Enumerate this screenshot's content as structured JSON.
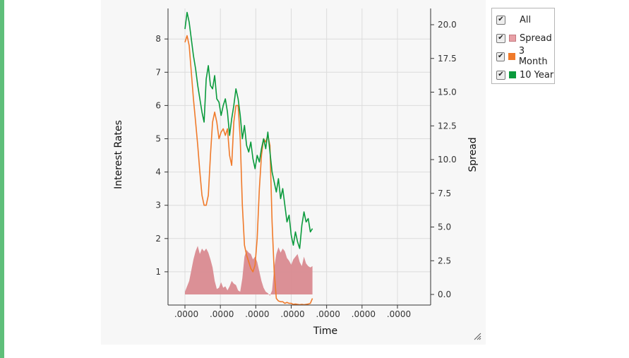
{
  "chart_data": {
    "type": "line",
    "xlabel": "Time",
    "ylabel": "Interest Rates",
    "y2label": "Spread",
    "x_tick_labels": [
      ".0000",
      ".0000",
      ".0000",
      ".0000",
      ".0000",
      ".0000",
      ".0000"
    ],
    "ylim": [
      0,
      8.8
    ],
    "y_ticks": [
      1,
      2,
      3,
      4,
      5,
      6,
      7,
      8
    ],
    "y2lim": [
      -1.0,
      21.1
    ],
    "y2_ticks": [
      "0.0",
      "2.5",
      "5.0",
      "7.5",
      "10.0",
      "12.5",
      "15.0",
      "17.5",
      "20.0"
    ],
    "grid": true,
    "legend_position": "right",
    "series": [
      {
        "name": "10 Year",
        "axis": "left",
        "color": "#0a9a3c",
        "points": [
          [
            0.0,
            8.3
          ],
          [
            0.01,
            8.8
          ],
          [
            0.02,
            8.5
          ],
          [
            0.03,
            8.0
          ],
          [
            0.04,
            7.5
          ],
          [
            0.05,
            7.1
          ],
          [
            0.06,
            6.6
          ],
          [
            0.07,
            6.2
          ],
          [
            0.08,
            5.8
          ],
          [
            0.09,
            5.5
          ],
          [
            0.1,
            6.8
          ],
          [
            0.11,
            7.2
          ],
          [
            0.12,
            6.6
          ],
          [
            0.13,
            6.5
          ],
          [
            0.14,
            6.9
          ],
          [
            0.15,
            6.2
          ],
          [
            0.16,
            6.1
          ],
          [
            0.17,
            5.7
          ],
          [
            0.18,
            6.0
          ],
          [
            0.19,
            6.2
          ],
          [
            0.2,
            5.8
          ],
          [
            0.21,
            5.1
          ],
          [
            0.22,
            5.6
          ],
          [
            0.23,
            6.0
          ],
          [
            0.24,
            6.5
          ],
          [
            0.25,
            6.2
          ],
          [
            0.26,
            5.7
          ],
          [
            0.27,
            5.0
          ],
          [
            0.28,
            5.4
          ],
          [
            0.29,
            4.8
          ],
          [
            0.3,
            4.6
          ],
          [
            0.31,
            4.9
          ],
          [
            0.32,
            4.4
          ],
          [
            0.33,
            4.1
          ],
          [
            0.34,
            4.5
          ],
          [
            0.35,
            4.3
          ],
          [
            0.36,
            4.7
          ],
          [
            0.37,
            5.0
          ],
          [
            0.38,
            4.7
          ],
          [
            0.39,
            5.2
          ],
          [
            0.4,
            4.6
          ],
          [
            0.41,
            4.0
          ],
          [
            0.42,
            3.7
          ],
          [
            0.43,
            3.4
          ],
          [
            0.44,
            3.8
          ],
          [
            0.45,
            3.2
          ],
          [
            0.46,
            3.5
          ],
          [
            0.47,
            3.0
          ],
          [
            0.48,
            2.5
          ],
          [
            0.49,
            2.7
          ],
          [
            0.5,
            2.1
          ],
          [
            0.51,
            1.8
          ],
          [
            0.52,
            2.2
          ],
          [
            0.53,
            1.9
          ],
          [
            0.54,
            1.7
          ],
          [
            0.55,
            2.4
          ],
          [
            0.56,
            2.8
          ],
          [
            0.57,
            2.5
          ],
          [
            0.58,
            2.6
          ],
          [
            0.59,
            2.2
          ],
          [
            0.6,
            2.3
          ]
        ]
      },
      {
        "name": "3 Month",
        "axis": "left",
        "color": "#f07a2a",
        "points": [
          [
            0.0,
            7.9
          ],
          [
            0.01,
            8.1
          ],
          [
            0.02,
            7.8
          ],
          [
            0.03,
            7.0
          ],
          [
            0.04,
            6.2
          ],
          [
            0.05,
            5.5
          ],
          [
            0.06,
            4.8
          ],
          [
            0.07,
            4.0
          ],
          [
            0.08,
            3.3
          ],
          [
            0.09,
            3.0
          ],
          [
            0.1,
            3.0
          ],
          [
            0.11,
            3.3
          ],
          [
            0.12,
            4.5
          ],
          [
            0.13,
            5.5
          ],
          [
            0.14,
            5.8
          ],
          [
            0.15,
            5.5
          ],
          [
            0.16,
            5.0
          ],
          [
            0.17,
            5.2
          ],
          [
            0.18,
            5.3
          ],
          [
            0.19,
            5.1
          ],
          [
            0.2,
            5.3
          ],
          [
            0.21,
            4.5
          ],
          [
            0.22,
            4.2
          ],
          [
            0.23,
            5.5
          ],
          [
            0.24,
            6.0
          ],
          [
            0.25,
            6.0
          ],
          [
            0.26,
            5.0
          ],
          [
            0.27,
            3.0
          ],
          [
            0.28,
            1.8
          ],
          [
            0.29,
            1.5
          ],
          [
            0.3,
            1.3
          ],
          [
            0.31,
            1.1
          ],
          [
            0.32,
            1.0
          ],
          [
            0.33,
            1.2
          ],
          [
            0.34,
            2.0
          ],
          [
            0.35,
            3.5
          ],
          [
            0.36,
            4.5
          ],
          [
            0.37,
            5.0
          ],
          [
            0.38,
            4.9
          ],
          [
            0.39,
            5.1
          ],
          [
            0.4,
            4.8
          ],
          [
            0.41,
            2.5
          ],
          [
            0.42,
            1.0
          ],
          [
            0.43,
            0.2
          ],
          [
            0.44,
            0.12
          ],
          [
            0.45,
            0.1
          ],
          [
            0.46,
            0.1
          ],
          [
            0.47,
            0.05
          ],
          [
            0.48,
            0.08
          ],
          [
            0.49,
            0.05
          ],
          [
            0.5,
            0.05
          ],
          [
            0.51,
            0.02
          ],
          [
            0.52,
            0.03
          ],
          [
            0.53,
            0.02
          ],
          [
            0.54,
            0.01
          ],
          [
            0.55,
            0.02
          ],
          [
            0.56,
            0.01
          ],
          [
            0.57,
            0.02
          ],
          [
            0.58,
            0.03
          ],
          [
            0.59,
            0.05
          ],
          [
            0.6,
            0.2
          ]
        ]
      },
      {
        "name": "Spread",
        "axis": "right",
        "color": "#d98a90",
        "points": [
          [
            0.0,
            0.2
          ],
          [
            0.02,
            1.0
          ],
          [
            0.03,
            1.8
          ],
          [
            0.04,
            2.6
          ],
          [
            0.05,
            3.2
          ],
          [
            0.06,
            3.6
          ],
          [
            0.07,
            3.0
          ],
          [
            0.08,
            3.4
          ],
          [
            0.09,
            3.2
          ],
          [
            0.1,
            3.4
          ],
          [
            0.11,
            3.1
          ],
          [
            0.12,
            2.6
          ],
          [
            0.13,
            2.0
          ],
          [
            0.14,
            1.0
          ],
          [
            0.15,
            0.4
          ],
          [
            0.16,
            0.5
          ],
          [
            0.17,
            0.9
          ],
          [
            0.18,
            0.5
          ],
          [
            0.19,
            0.6
          ],
          [
            0.2,
            0.3
          ],
          [
            0.21,
            0.6
          ],
          [
            0.22,
            1.0
          ],
          [
            0.23,
            0.8
          ],
          [
            0.24,
            0.7
          ],
          [
            0.25,
            0.3
          ],
          [
            0.26,
            0.2
          ],
          [
            0.27,
            1.2
          ],
          [
            0.28,
            2.8
          ],
          [
            0.29,
            3.3
          ],
          [
            0.3,
            3.1
          ],
          [
            0.31,
            3.0
          ],
          [
            0.32,
            2.6
          ],
          [
            0.33,
            2.8
          ],
          [
            0.34,
            2.4
          ],
          [
            0.35,
            1.7
          ],
          [
            0.36,
            1.0
          ],
          [
            0.37,
            0.5
          ],
          [
            0.38,
            0.2
          ],
          [
            0.39,
            0.1
          ],
          [
            0.4,
            -0.1
          ],
          [
            0.41,
            0.3
          ],
          [
            0.42,
            2.0
          ],
          [
            0.43,
            3.0
          ],
          [
            0.44,
            3.5
          ],
          [
            0.45,
            3.1
          ],
          [
            0.46,
            3.4
          ],
          [
            0.47,
            3.2
          ],
          [
            0.48,
            2.7
          ],
          [
            0.49,
            2.5
          ],
          [
            0.5,
            2.2
          ],
          [
            0.51,
            2.6
          ],
          [
            0.52,
            2.8
          ],
          [
            0.53,
            3.0
          ],
          [
            0.54,
            2.4
          ],
          [
            0.55,
            2.1
          ],
          [
            0.56,
            2.8
          ],
          [
            0.57,
            2.3
          ],
          [
            0.58,
            2.1
          ],
          [
            0.59,
            2.0
          ],
          [
            0.6,
            2.1
          ]
        ]
      }
    ]
  },
  "legend": {
    "all_label": "All",
    "all_checked": true,
    "items": [
      {
        "label": "Spread",
        "color": "#e8a0a6",
        "checked": true
      },
      {
        "label": "3 Month",
        "color": "#f07a2a",
        "checked": true
      },
      {
        "label": "10 Year",
        "color": "#0a9a3c",
        "checked": true
      }
    ]
  },
  "icons": {
    "checkbox": "checkmark-icon",
    "resize": "resize-grip-icon"
  }
}
